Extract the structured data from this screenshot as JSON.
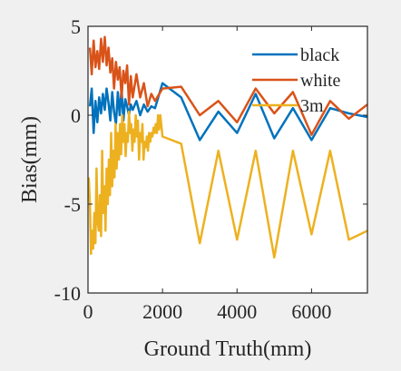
{
  "chart_data": {
    "type": "line",
    "title": "",
    "xlabel": "Ground Truth(mm)",
    "ylabel": "Bias(mm)",
    "xlim": [
      0,
      7500
    ],
    "ylim": [
      -10,
      5
    ],
    "xticks": [
      0,
      2000,
      4000,
      6000
    ],
    "yticks": [
      5,
      0,
      -5,
      -10
    ],
    "grid": false,
    "legend_position": "top-right",
    "background": "#ffffff",
    "figure_background": "#f0f0f0",
    "series": [
      {
        "name": "black",
        "color": "#0072bd",
        "x": [
          50,
          100,
          150,
          200,
          250,
          300,
          350,
          400,
          450,
          500,
          550,
          600,
          650,
          700,
          750,
          800,
          850,
          900,
          950,
          1000,
          1050,
          1100,
          1150,
          1200,
          1300,
          1400,
          1500,
          1600,
          1700,
          1800,
          2000,
          2500,
          3000,
          3500,
          4000,
          4500,
          5000,
          5500,
          6000,
          6500,
          7000,
          7500
        ],
        "y": [
          0.5,
          1.5,
          -1.0,
          0.8,
          -0.4,
          1.0,
          0.1,
          1.2,
          0.3,
          1.5,
          0.7,
          -0.3,
          1.3,
          0.2,
          -0.5,
          1.3,
          0.0,
          1.5,
          -0.3,
          0.9,
          0.5,
          0.0,
          0.6,
          0.3,
          0.8,
          0.0,
          0.6,
          0.2,
          0.5,
          0.4,
          1.8,
          1.0,
          -1.4,
          0.2,
          -1.0,
          1.2,
          -1.3,
          0.4,
          -1.4,
          0.4,
          0.1,
          -0.1
        ]
      },
      {
        "name": "white",
        "color": "#d95319",
        "x": [
          50,
          100,
          150,
          200,
          250,
          300,
          350,
          400,
          450,
          500,
          550,
          600,
          650,
          700,
          750,
          800,
          850,
          900,
          950,
          1000,
          1050,
          1100,
          1150,
          1200,
          1300,
          1400,
          1500,
          1600,
          1700,
          1800,
          2000,
          2500,
          3000,
          3500,
          4000,
          4500,
          5000,
          5500,
          6000,
          6500,
          7000,
          7500
        ],
        "y": [
          3.8,
          2.3,
          4.2,
          2.7,
          3.6,
          2.6,
          4.3,
          3.0,
          4.4,
          2.8,
          3.8,
          2.4,
          3.2,
          1.5,
          3.0,
          2.0,
          2.7,
          1.0,
          2.5,
          1.8,
          2.8,
          0.6,
          2.2,
          1.0,
          2.3,
          1.0,
          1.8,
          0.5,
          1.2,
          0.8,
          1.5,
          1.6,
          0.0,
          0.8,
          -0.4,
          1.5,
          0.1,
          1.3,
          -1.1,
          0.8,
          -0.2,
          0.6
        ]
      },
      {
        "name": "3m",
        "color": "#edb120",
        "x": [
          20,
          50,
          80,
          110,
          140,
          170,
          200,
          230,
          260,
          290,
          320,
          350,
          380,
          410,
          440,
          470,
          500,
          530,
          560,
          590,
          620,
          650,
          680,
          710,
          740,
          770,
          800,
          830,
          860,
          890,
          920,
          950,
          980,
          1010,
          1040,
          1070,
          1100,
          1130,
          1160,
          1190,
          1220,
          1250,
          1280,
          1310,
          1340,
          1370,
          1400,
          1430,
          1460,
          1490,
          1520,
          1550,
          1580,
          1610,
          1640,
          1670,
          1700,
          1730,
          1760,
          1790,
          1820,
          1850,
          1880,
          1910,
          1940,
          2000,
          2500,
          3000,
          3500,
          4000,
          4500,
          5000,
          5500,
          6000,
          6500,
          7000,
          7500
        ],
        "y": [
          -3.5,
          -5.0,
          -7.8,
          -6.5,
          -7.5,
          -5.5,
          -7.2,
          -3.0,
          -6.0,
          -6.5,
          -4.5,
          -6.8,
          -2.0,
          -5.5,
          -4.0,
          -6.5,
          -3.0,
          -5.0,
          -2.5,
          -4.5,
          -1.0,
          -4.0,
          -2.0,
          -3.5,
          -0.5,
          -3.0,
          -1.0,
          -2.5,
          -0.5,
          -2.2,
          0.0,
          -1.5,
          -0.5,
          -2.3,
          -1.0,
          -1.5,
          0.2,
          -1.0,
          -0.5,
          -2.0,
          -0.8,
          -1.5,
          0.0,
          -1.2,
          -0.3,
          -2.5,
          -1.0,
          -1.5,
          -0.5,
          -2.5,
          -1.5,
          -1.8,
          -1.2,
          -2.0,
          -1.0,
          -1.5,
          -1.0,
          -1.2,
          -0.7,
          -1.0,
          -0.5,
          -1.0,
          0.0,
          -0.8,
          0.0,
          -1.2,
          -1.6,
          -7.2,
          -2.0,
          -7.0,
          -2.0,
          -8.0,
          -2.0,
          -6.7,
          -2.0,
          -7.0,
          -6.5
        ]
      }
    ]
  }
}
